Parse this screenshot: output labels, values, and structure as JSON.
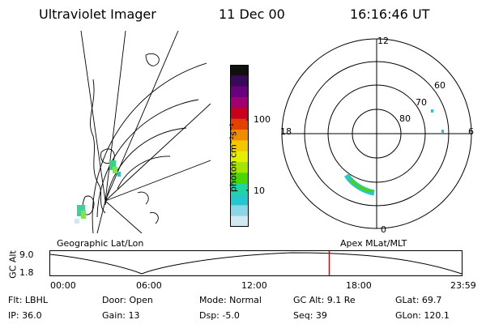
{
  "header": {
    "instrument": "Ultraviolet Imager",
    "date": "11 Dec 00",
    "time": "16:16:46 UT"
  },
  "colorbar": {
    "unit_label": "photon cm⁻²s⁻¹",
    "ticks": [
      "100",
      "10"
    ],
    "colors": [
      "#101010",
      "#3a0a5a",
      "#6a0080",
      "#a00070",
      "#c8001e",
      "#e34100",
      "#f08c00",
      "#f4c800",
      "#e6ef00",
      "#a4e600",
      "#4cd600",
      "#1ed6a0",
      "#25c6ce",
      "#8ad6e8",
      "#d2e8f0"
    ]
  },
  "geo_panel": {
    "label": "Geographic Lat/Lon"
  },
  "polar_panel": {
    "label": "Apex MLat/MLT",
    "mlt_labels": {
      "top": "12",
      "left": "18",
      "right": "6",
      "bottom": "0"
    },
    "lat_labels": [
      "80",
      "70",
      "60"
    ]
  },
  "timeline": {
    "ylabel": "GC Alt",
    "ytick_high": "9.0",
    "ytick_low": "1.8",
    "xticks": [
      "00:00",
      "06:00",
      "12:00",
      "18:00",
      "23:59"
    ],
    "current_time_fraction": 0.678,
    "marker_color": "#d00000"
  },
  "info": {
    "flt": "Flt: LBHL",
    "ip": "IP: 36.0",
    "door": "Door: Open",
    "gain": "Gain: 13",
    "mode": "Mode: Normal",
    "dsp": "Dsp:  -5.0",
    "gc_alt": "GC Alt: 9.1 Re",
    "seq": "Seq: 39",
    "glat": "GLat:  69.7",
    "glon": "GLon: 120.1"
  }
}
